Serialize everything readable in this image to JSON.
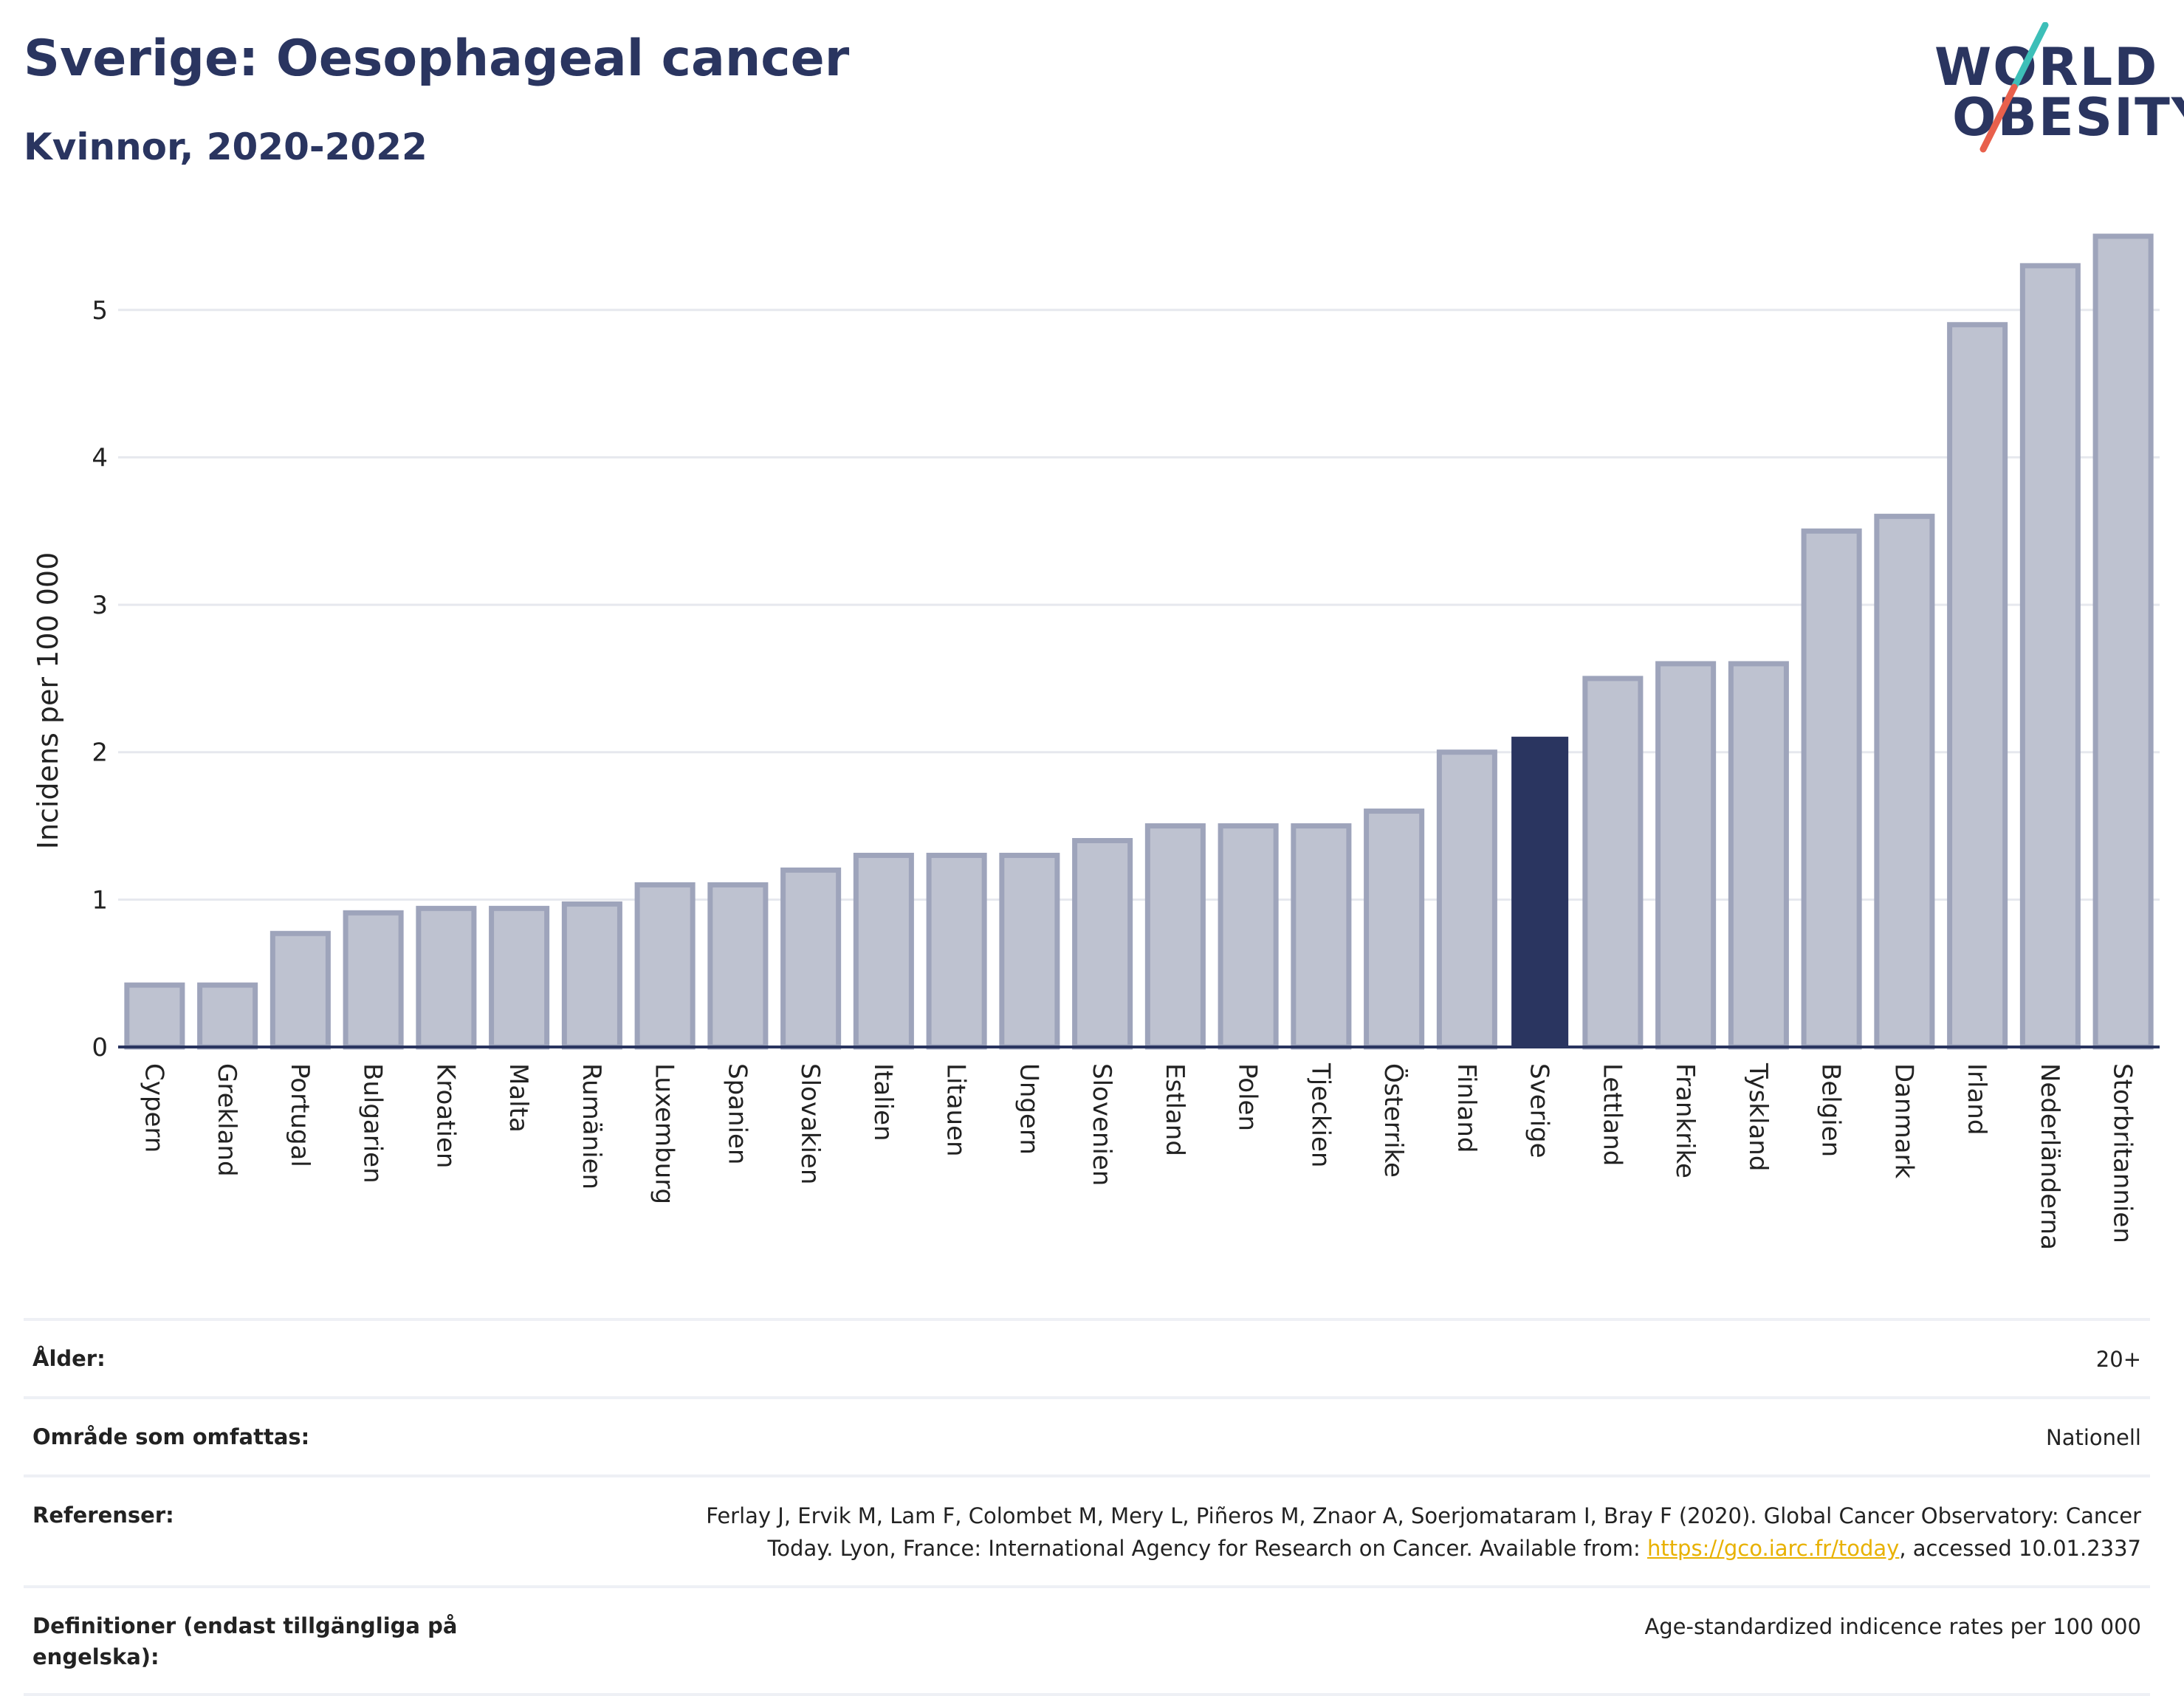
{
  "header": {
    "title": "Sverige: Oesophageal cancer",
    "subtitle": "Kvinnor, 2020-2022"
  },
  "logo": {
    "line1": "WORLD",
    "line2": "OBESITY",
    "colors": {
      "text": "#2a3560",
      "slash_top": "#3dbfb8",
      "slash_bottom": "#e8604c"
    }
  },
  "colors": {
    "highlight": "#2a3560",
    "bar_fill": "#bec2d0",
    "bar_stroke": "#9ea4bb",
    "grid": "#e6e8ee",
    "axis": "#2a3560"
  },
  "chart_data": {
    "type": "bar",
    "title": "Sverige: Oesophageal cancer",
    "subtitle": "Kvinnor, 2020-2022",
    "ylabel": "Incidens per 100 000",
    "xlabel": "",
    "ylim": [
      0,
      5.6
    ],
    "yticks": [
      0,
      1,
      2,
      3,
      4,
      5
    ],
    "grid": true,
    "highlight": "Sverige",
    "categories": [
      "Cypern",
      "Grekland",
      "Portugal",
      "Bulgarien",
      "Kroatien",
      "Malta",
      "Rumänien",
      "Luxemburg",
      "Spanien",
      "Slovakien",
      "Italien",
      "Litauen",
      "Ungern",
      "Slovenien",
      "Estland",
      "Polen",
      "Tjeckien",
      "Österrike",
      "Finland",
      "Sverige",
      "Lettland",
      "Frankrike",
      "Tyskland",
      "Belgien",
      "Danmark",
      "Irland",
      "Nederländerna",
      "Storbritannien"
    ],
    "values": [
      0.42,
      0.42,
      0.77,
      0.91,
      0.94,
      0.94,
      0.97,
      1.1,
      1.1,
      1.2,
      1.3,
      1.3,
      1.3,
      1.4,
      1.5,
      1.5,
      1.5,
      1.6,
      2.0,
      2.1,
      2.5,
      2.6,
      2.6,
      3.5,
      3.6,
      4.9,
      5.3,
      5.5
    ]
  },
  "meta": {
    "age_label": "Ålder:",
    "age_value": "20+",
    "coverage_label": "Område som omfattas:",
    "coverage_value": "Nationell",
    "references_label": "Referenser:",
    "references_line1": "Ferlay J, Ervik M, Lam F, Colombet M, Mery L, Piñeros M, Znaor A, Soerjomataram I, Bray F (2020). Global Cancer Observatory: Cancer",
    "references_line2_pre": "Today. Lyon, France: International Agency for Research on Cancer. Available from: ",
    "references_link": "https://gco.iarc.fr/today",
    "references_line2_post": ", accessed 10.01.2337",
    "definitions_label": "Definitioner (endast tillgängliga på engelska):",
    "definitions_value": "Age-standardized indicence rates per 100 000"
  }
}
